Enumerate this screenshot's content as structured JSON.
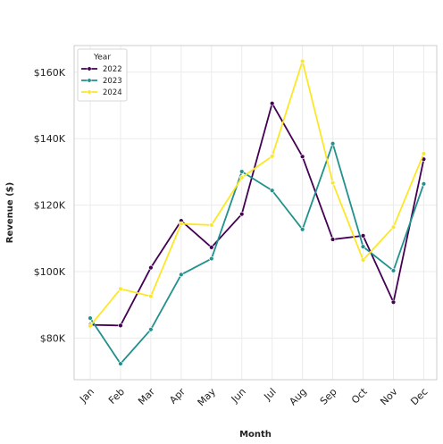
{
  "chart_data": {
    "type": "line",
    "title": "",
    "xlabel": "Month",
    "ylabel": "Revenue ($)",
    "categories": [
      "Jan",
      "Feb",
      "Mar",
      "Apr",
      "May",
      "Jun",
      "Jul",
      "Aug",
      "Sep",
      "Oct",
      "Nov",
      "Dec"
    ],
    "ylim": [
      67500,
      168000
    ],
    "yticks": [
      80000,
      100000,
      120000,
      140000,
      160000
    ],
    "ytick_labels": [
      "$80K",
      "$100K",
      "$120K",
      "$140K",
      "$160K"
    ],
    "grid": true,
    "legend": {
      "title": "Year",
      "placement": "top-left"
    },
    "series": [
      {
        "name": "2022",
        "color": "#440154",
        "values": [
          84000,
          83800,
          101200,
          115300,
          107300,
          117300,
          150600,
          134600,
          109700,
          110800,
          90800,
          133800
        ]
      },
      {
        "name": "2023",
        "color": "#21918c",
        "values": [
          86000,
          72300,
          82600,
          99100,
          103900,
          130100,
          124400,
          112700,
          138500,
          107500,
          100300,
          126400
        ]
      },
      {
        "name": "2024",
        "color": "#fde725",
        "values": [
          83700,
          94800,
          92600,
          114400,
          114000,
          128300,
          134700,
          163300,
          126700,
          103500,
          113400,
          135500
        ]
      }
    ]
  }
}
